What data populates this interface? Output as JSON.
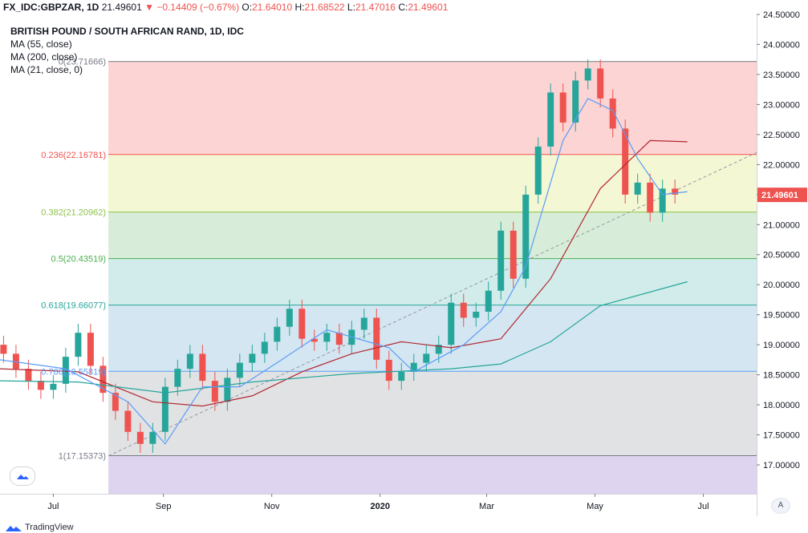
{
  "header": {
    "symbol": "FX_IDC:GBPZAR, 1D",
    "price": "21.49601",
    "change": "−0.14409 (−0.67%)",
    "o_label": "O:",
    "o_value": "21.64010",
    "h_label": "H:",
    "h_value": "21.68522",
    "l_label": "L:",
    "l_value": "21.47016",
    "c_label": "C:",
    "c_value": "21.49601"
  },
  "legend": {
    "title": "BRITISH POUND / SOUTH AFRICAN RAND, 1D, IDC",
    "ma1": "MA (55, close)",
    "ma2": "MA (200, close)",
    "ma3": "MA (21, close, 0)"
  },
  "footer": {
    "brand": "TradingView",
    "autoscale": "A"
  },
  "colors": {
    "up": "#26a69a",
    "down": "#ef5350",
    "ma55": "#b22833",
    "ma200": "#26a69a",
    "ma21": "#5b9cf6",
    "trendline": "#9598a1"
  },
  "chart_data": {
    "type": "candlestick",
    "title": "BRITISH POUND / SOUTH AFRICAN RAND, 1D, IDC",
    "y_axis": {
      "ticks": [
        "24.50000",
        "24.00000",
        "23.50000",
        "23.00000",
        "22.50000",
        "22.00000",
        "21.50000",
        "21.00000",
        "20.50000",
        "20.00000",
        "19.50000",
        "19.00000",
        "18.50000",
        "18.00000",
        "17.50000",
        "17.00000"
      ],
      "range": [
        16.52,
        24.5
      ],
      "last_price_label": "21.49601"
    },
    "x_axis": {
      "ticks": [
        "Jul",
        "Sep",
        "Nov",
        "2020",
        "Mar",
        "May",
        "Jul"
      ],
      "range": [
        "2019-06-01",
        "2020-07-31"
      ]
    },
    "fibonacci": [
      {
        "label": "0(23.71666)",
        "level": 23.71666,
        "color": "#787b86",
        "fill": "rgba(239,83,80,0.25)"
      },
      {
        "label": "0.236(22.16781)",
        "level": 22.16781,
        "color": "#ef5350",
        "fill": "rgba(205,220,57,0.22)"
      },
      {
        "label": "0.382(21.20962)",
        "level": 21.20962,
        "color": "#8bc34a",
        "fill": "rgba(76,175,80,0.22)"
      },
      {
        "label": "0.5(20.43519)",
        "level": 20.43519,
        "color": "#4caf50",
        "fill": "rgba(0,150,136,0.18)"
      },
      {
        "label": "0.618(19.66077)",
        "level": 19.66077,
        "color": "#26a69a",
        "fill": "rgba(41,128,185,0.20)"
      },
      {
        "label": "0.786(18.55819)",
        "level": 18.55819,
        "color": "#5b9cf6",
        "fill": "rgba(120,123,134,0.22)"
      },
      {
        "label": "1(17.15373)",
        "level": 17.15373,
        "color": "#787b86",
        "fill": "rgba(103,58,183,0.22)"
      }
    ],
    "fib_start_date": "2019-08-01",
    "trendline": {
      "from": [
        "2019-08-01",
        17.15
      ],
      "to": [
        "2020-07-31",
        22.2
      ]
    },
    "candles": [
      [
        "2019-06-03",
        19.0,
        18.85
      ],
      [
        "2019-06-10",
        18.85,
        18.6
      ],
      [
        "2019-06-17",
        18.6,
        18.4
      ],
      [
        "2019-06-24",
        18.4,
        18.25
      ],
      [
        "2019-07-01",
        18.25,
        18.35
      ],
      [
        "2019-07-08",
        18.35,
        18.8
      ],
      [
        "2019-07-15",
        18.8,
        19.2
      ],
      [
        "2019-07-22",
        19.2,
        18.65
      ],
      [
        "2019-07-29",
        18.65,
        18.2
      ],
      [
        "2019-08-05",
        18.2,
        17.9
      ],
      [
        "2019-08-12",
        17.9,
        17.55
      ],
      [
        "2019-08-19",
        17.55,
        17.35
      ],
      [
        "2019-08-26",
        17.35,
        17.55
      ],
      [
        "2019-09-02",
        17.55,
        18.3
      ],
      [
        "2019-09-09",
        18.3,
        18.6
      ],
      [
        "2019-09-16",
        18.6,
        18.85
      ],
      [
        "2019-09-23",
        18.85,
        18.4
      ],
      [
        "2019-09-30",
        18.4,
        18.05
      ],
      [
        "2019-10-07",
        18.05,
        18.45
      ],
      [
        "2019-10-14",
        18.45,
        18.7
      ],
      [
        "2019-10-21",
        18.7,
        18.85
      ],
      [
        "2019-10-28",
        18.85,
        19.05
      ],
      [
        "2019-11-04",
        19.05,
        19.3
      ],
      [
        "2019-11-11",
        19.3,
        19.6
      ],
      [
        "2019-11-18",
        19.6,
        19.1
      ],
      [
        "2019-11-25",
        19.1,
        19.05
      ],
      [
        "2019-12-02",
        19.05,
        19.2
      ],
      [
        "2019-12-09",
        19.2,
        19.0
      ],
      [
        "2019-12-16",
        19.0,
        19.25
      ],
      [
        "2019-12-23",
        19.25,
        19.45
      ],
      [
        "2019-12-30",
        19.45,
        18.75
      ],
      [
        "2020-01-06",
        18.75,
        18.4
      ],
      [
        "2020-01-13",
        18.4,
        18.55
      ],
      [
        "2020-01-20",
        18.55,
        18.7
      ],
      [
        "2020-01-27",
        18.7,
        18.85
      ],
      [
        "2020-02-03",
        18.85,
        19.0
      ],
      [
        "2020-02-10",
        19.0,
        19.7
      ],
      [
        "2020-02-17",
        19.7,
        19.45
      ],
      [
        "2020-02-24",
        19.45,
        19.55
      ],
      [
        "2020-03-02",
        19.55,
        19.9
      ],
      [
        "2020-03-09",
        19.9,
        20.9
      ],
      [
        "2020-03-16",
        20.9,
        20.1
      ],
      [
        "2020-03-23",
        20.1,
        21.5
      ],
      [
        "2020-03-30",
        21.5,
        22.3
      ],
      [
        "2020-04-06",
        22.3,
        23.2
      ],
      [
        "2020-04-13",
        23.2,
        22.7
      ],
      [
        "2020-04-20",
        22.7,
        23.4
      ],
      [
        "2020-04-27",
        23.4,
        23.6
      ],
      [
        "2020-05-04",
        23.6,
        23.1
      ],
      [
        "2020-05-11",
        23.1,
        22.6
      ],
      [
        "2020-05-18",
        22.6,
        21.5
      ],
      [
        "2020-05-25",
        21.5,
        21.7
      ],
      [
        "2020-06-01",
        21.7,
        21.2
      ],
      [
        "2020-06-08",
        21.2,
        21.6
      ],
      [
        "2020-06-15",
        21.6,
        21.5
      ]
    ],
    "series": [
      {
        "name": "MA (55, close)",
        "color": "#b22833",
        "points": [
          [
            "2019-06-01",
            18.6
          ],
          [
            "2019-07-15",
            18.55
          ],
          [
            "2019-08-26",
            18.05
          ],
          [
            "2019-09-23",
            17.98
          ],
          [
            "2019-10-21",
            18.15
          ],
          [
            "2019-11-18",
            18.55
          ],
          [
            "2019-12-16",
            18.85
          ],
          [
            "2020-01-13",
            19.05
          ],
          [
            "2020-02-10",
            18.95
          ],
          [
            "2020-03-09",
            19.1
          ],
          [
            "2020-04-06",
            20.1
          ],
          [
            "2020-05-04",
            21.6
          ],
          [
            "2020-06-01",
            22.4
          ],
          [
            "2020-06-22",
            22.38
          ]
        ]
      },
      {
        "name": "MA (200, close)",
        "color": "#26a69a",
        "points": [
          [
            "2019-06-01",
            18.4
          ],
          [
            "2019-07-15",
            18.38
          ],
          [
            "2019-09-02",
            18.2
          ],
          [
            "2019-10-21",
            18.38
          ],
          [
            "2019-12-16",
            18.52
          ],
          [
            "2020-02-10",
            18.6
          ],
          [
            "2020-03-09",
            18.68
          ],
          [
            "2020-04-06",
            19.05
          ],
          [
            "2020-05-04",
            19.65
          ],
          [
            "2020-06-22",
            20.05
          ]
        ]
      },
      {
        "name": "MA (21, close, 0)",
        "color": "#5b9cf6",
        "points": [
          [
            "2019-06-01",
            18.75
          ],
          [
            "2019-07-08",
            18.6
          ],
          [
            "2019-08-12",
            18.05
          ],
          [
            "2019-09-02",
            17.35
          ],
          [
            "2019-09-23",
            18.3
          ],
          [
            "2019-10-14",
            18.3
          ],
          [
            "2019-11-04",
            18.7
          ],
          [
            "2019-12-02",
            19.25
          ],
          [
            "2020-01-06",
            18.95
          ],
          [
            "2020-01-20",
            18.55
          ],
          [
            "2020-02-17",
            19.0
          ],
          [
            "2020-03-09",
            19.55
          ],
          [
            "2020-03-23",
            20.3
          ],
          [
            "2020-04-13",
            22.4
          ],
          [
            "2020-04-27",
            23.1
          ],
          [
            "2020-05-11",
            22.9
          ],
          [
            "2020-05-25",
            22.1
          ],
          [
            "2020-06-08",
            21.5
          ],
          [
            "2020-06-22",
            21.55
          ]
        ]
      }
    ]
  }
}
